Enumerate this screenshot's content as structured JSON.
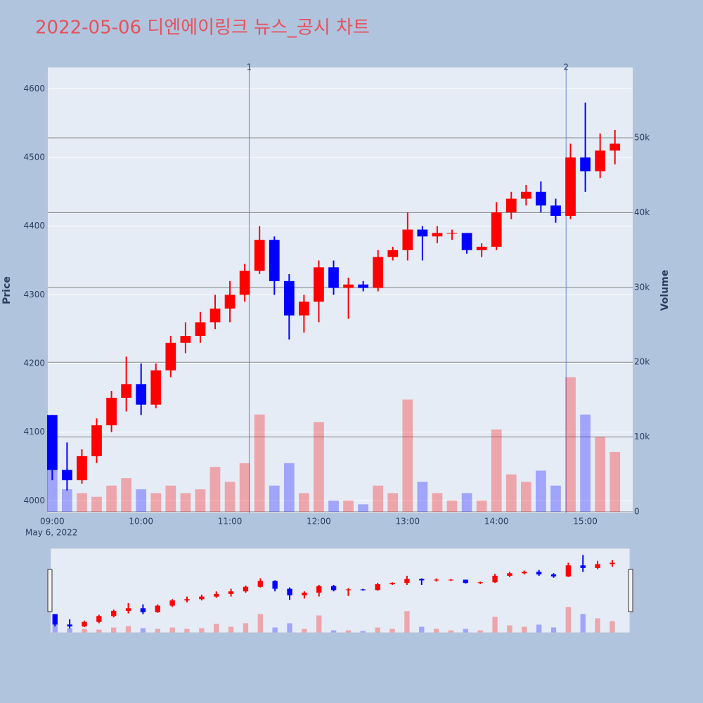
{
  "chart_data": {
    "type": "candlestick",
    "title": "2022-05-06 디엔에이링크 뉴스_공시 차트",
    "y_title": "Price",
    "y2_title": "Volume",
    "x_date_label": "May 6, 2022",
    "x": [
      "09:00",
      "09:10",
      "09:20",
      "09:30",
      "09:40",
      "09:50",
      "10:00",
      "10:10",
      "10:20",
      "10:30",
      "10:40",
      "10:50",
      "11:00",
      "11:10",
      "11:20",
      "11:30",
      "11:40",
      "11:50",
      "12:00",
      "12:10",
      "12:20",
      "12:30",
      "12:40",
      "12:50",
      "13:00",
      "13:10",
      "13:20",
      "13:30",
      "13:40",
      "13:50",
      "14:00",
      "14:10",
      "14:20",
      "14:30",
      "14:40",
      "14:50",
      "15:00",
      "15:10",
      "15:20"
    ],
    "open": [
      4125,
      4045,
      4030,
      4065,
      4110,
      4150,
      4170,
      4140,
      4190,
      4230,
      4240,
      4260,
      4280,
      4300,
      4335,
      4380,
      4320,
      4270,
      4290,
      4340,
      4310,
      4315,
      4310,
      4355,
      4365,
      4395,
      4385,
      4390,
      4390,
      4365,
      4370,
      4420,
      4440,
      4450,
      4430,
      4415,
      4500,
      4480,
      4510
    ],
    "high": [
      4125,
      4085,
      4075,
      4120,
      4160,
      4210,
      4200,
      4200,
      4240,
      4260,
      4275,
      4300,
      4320,
      4345,
      4400,
      4385,
      4330,
      4300,
      4350,
      4350,
      4325,
      4320,
      4365,
      4370,
      4420,
      4400,
      4400,
      4395,
      4390,
      4375,
      4435,
      4450,
      4460,
      4465,
      4440,
      4520,
      4580,
      4535,
      4540
    ],
    "low": [
      4030,
      4015,
      4025,
      4055,
      4100,
      4130,
      4125,
      4135,
      4180,
      4215,
      4230,
      4250,
      4260,
      4290,
      4330,
      4300,
      4235,
      4245,
      4260,
      4300,
      4265,
      4305,
      4305,
      4350,
      4350,
      4350,
      4375,
      4380,
      4360,
      4355,
      4365,
      4410,
      4430,
      4420,
      4405,
      4410,
      4450,
      4470,
      4490
    ],
    "close": [
      4045,
      4030,
      4065,
      4110,
      4150,
      4170,
      4140,
      4190,
      4230,
      4240,
      4260,
      4280,
      4300,
      4335,
      4380,
      4320,
      4270,
      4290,
      4340,
      4310,
      4315,
      4310,
      4355,
      4365,
      4395,
      4385,
      4390,
      4390,
      4365,
      4370,
      4420,
      4440,
      4450,
      4430,
      4415,
      4500,
      4480,
      4510,
      4520
    ],
    "volume": [
      9000,
      3000,
      2500,
      2000,
      3500,
      4500,
      3000,
      2500,
      3500,
      2500,
      3000,
      6000,
      4000,
      6500,
      13000,
      3500,
      6500,
      2500,
      12000,
      1500,
      1500,
      1000,
      3500,
      2500,
      15000,
      4000,
      2500,
      1500,
      2500,
      1500,
      11000,
      5000,
      4000,
      5500,
      3500,
      18000,
      13000,
      10000,
      8000
    ],
    "increasing_color": "#ff0000",
    "decreasing_color": "#0000ff",
    "xlim": [
      "08:57",
      "15:32"
    ],
    "xticks": [
      "09:00",
      "10:00",
      "11:00",
      "12:00",
      "13:00",
      "14:00",
      "15:00"
    ],
    "ylim": [
      3982,
      4631
    ],
    "yticks": [
      4000,
      4100,
      4200,
      4300,
      4400,
      4500,
      4600
    ],
    "y2lim": [
      -188,
      59400
    ],
    "y2ticks": [
      0,
      {
        "value": 10000,
        "label": "10k"
      },
      {
        "value": 20000,
        "label": "20k"
      },
      {
        "value": 30000,
        "label": "30k"
      },
      {
        "value": 40000,
        "label": "40k"
      },
      {
        "value": 50000,
        "label": "50k"
      }
    ],
    "annotations": [
      {
        "x": "11:13",
        "text": "1"
      },
      {
        "x": "14:47",
        "text": "2"
      }
    ],
    "grid": true
  }
}
